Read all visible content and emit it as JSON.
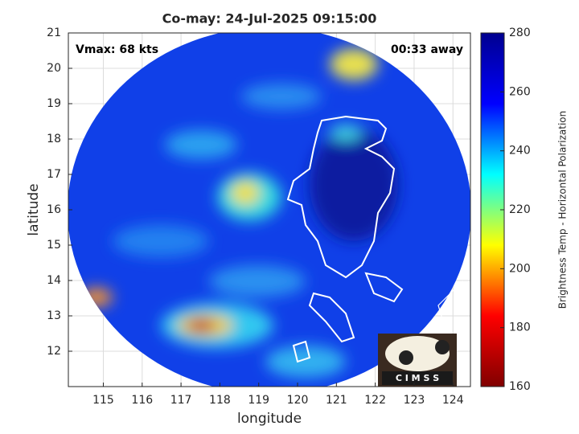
{
  "map": {
    "title": "Co-may: 24-Jul-2025 09:15:00",
    "annotations": {
      "left": "Vmax: 68 kts",
      "right": "00:33 away"
    },
    "xlabel": "longitude",
    "ylabel": "latitude",
    "xlim": [
      114.1,
      124.45
    ],
    "xticks": [
      115,
      116,
      117,
      118,
      119,
      120,
      121,
      122,
      123,
      124
    ],
    "ylim": [
      11,
      21
    ],
    "yticks": [
      12,
      13,
      14,
      15,
      16,
      17,
      18,
      19,
      20,
      21
    ],
    "grid": true,
    "colorbar": {
      "label": "Brightness Temp - Horizontal Polarization",
      "lim": [
        160,
        280
      ],
      "ticks": [
        160,
        180,
        200,
        220,
        240,
        260,
        280
      ],
      "colormap": [
        "#800000",
        "#ff0000",
        "#ffff00",
        "#00ffff",
        "#0000ff",
        "#00008f"
      ]
    },
    "logo": "C I M S S"
  }
}
